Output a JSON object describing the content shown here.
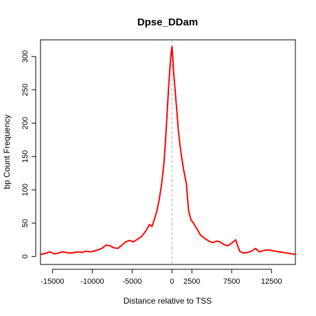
{
  "chart_data": {
    "type": "line",
    "title": "Dpse_DDam",
    "xlabel": "Distance relative to TSS",
    "ylabel": "bp Count Frequency",
    "xlim": [
      -16500,
      15500
    ],
    "ylim": [
      -12,
      325
    ],
    "x_ticks": [
      {
        "value": -15000,
        "label": "-15000"
      },
      {
        "value": -10000,
        "label": "-10000"
      },
      {
        "value": -5000,
        "label": "-5000"
      },
      {
        "value": 0,
        "label": "0"
      },
      {
        "value": 2500,
        "label": "2500"
      },
      {
        "value": 7500,
        "label": "7500"
      },
      {
        "value": 12500,
        "label": "12500"
      }
    ],
    "y_ticks": [
      {
        "value": 0,
        "label": "0"
      },
      {
        "value": 50,
        "label": "50"
      },
      {
        "value": 100,
        "label": "100"
      },
      {
        "value": 150,
        "label": "150"
      },
      {
        "value": 200,
        "label": "200"
      },
      {
        "value": 250,
        "label": "250"
      },
      {
        "value": 300,
        "label": "300"
      }
    ],
    "reference_line": {
      "x": 0,
      "color": "#aaaaaa",
      "style": "dashed"
    },
    "series_color": "#ff0000",
    "series": [
      {
        "x": [
          -16500,
          -15800,
          -15300,
          -14800,
          -14300,
          -13800,
          -13300,
          -12800,
          -12300,
          -11800,
          -11300,
          -10800,
          -10300,
          -9800,
          -9300,
          -8800,
          -8300,
          -7800,
          -7300,
          -6800,
          -6300,
          -5800,
          -5300,
          -4800,
          -4300,
          -3800,
          -3300,
          -2800,
          -2500,
          -2200,
          -1900,
          -1600,
          -1300,
          -1000,
          -800,
          -600,
          -400,
          -200,
          -100,
          0,
          100,
          200,
          400,
          600,
          800,
          1000,
          1200,
          1500,
          1800,
          2100,
          2400,
          2700,
          3000,
          3300,
          3600,
          4000,
          4400,
          4800,
          5200,
          5600,
          6000,
          6500,
          7000,
          7500,
          8000,
          8500,
          9000,
          9500,
          10000,
          10500,
          11000,
          11500,
          12000,
          12500,
          13000,
          13500,
          14000,
          14500,
          15000,
          15500
        ],
        "y": [
          3,
          5,
          7,
          4,
          5,
          7,
          6,
          5,
          6,
          7,
          6,
          8,
          7,
          8,
          10,
          12,
          17,
          16,
          13,
          12,
          17,
          22,
          24,
          22,
          26,
          30,
          38,
          48,
          45,
          56,
          68,
          85,
          108,
          140,
          175,
          215,
          258,
          292,
          305,
          315,
          300,
          278,
          250,
          220,
          190,
          168,
          150,
          128,
          110,
          68,
          55,
          50,
          44,
          38,
          32,
          28,
          25,
          22,
          21,
          23,
          22,
          18,
          16,
          20,
          25,
          8,
          5,
          6,
          8,
          12,
          7,
          9,
          10,
          9,
          8,
          7,
          6,
          5,
          4,
          3
        ]
      }
    ]
  }
}
